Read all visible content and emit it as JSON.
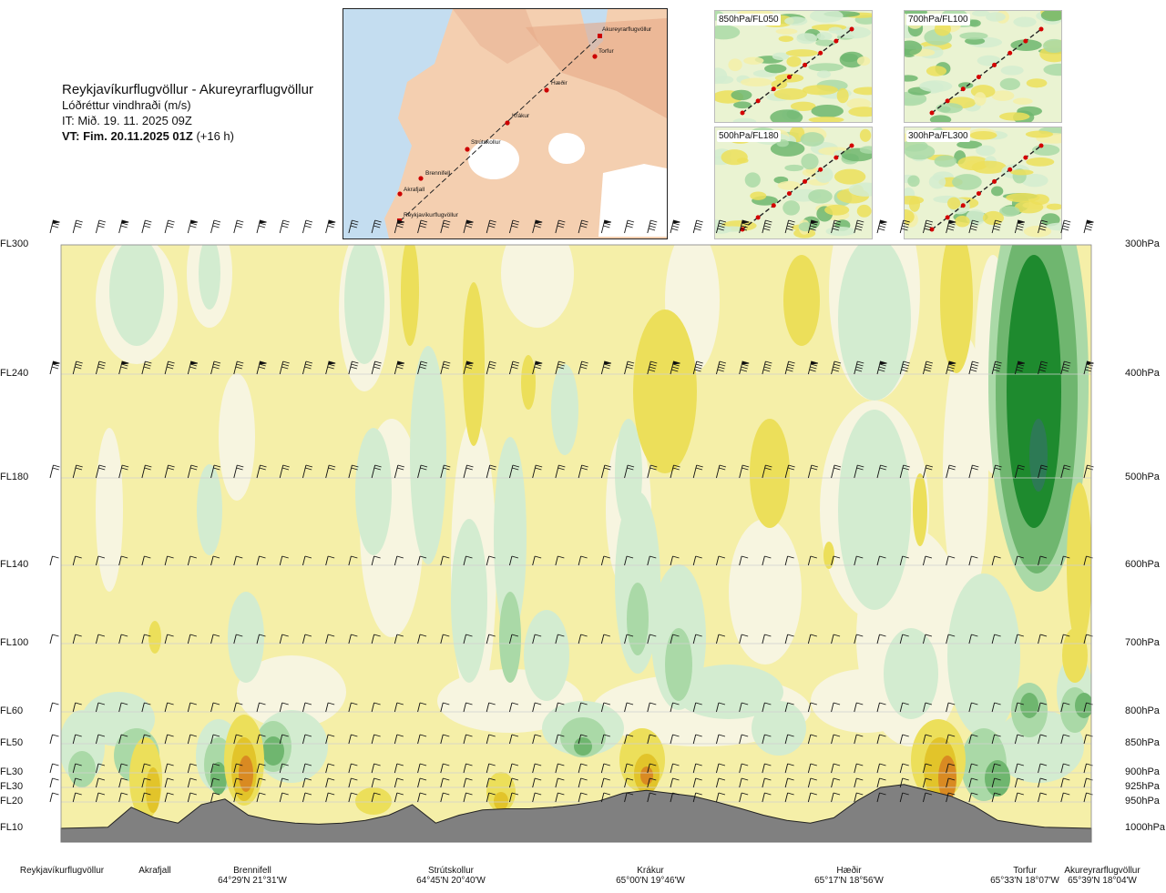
{
  "title": {
    "route": "Reykjavíkurflugvöllur - Akureyrarflugvöllur",
    "variable": "Lóðréttur vindhraði (m/s)",
    "issue_time": "IT: Mið. 19. 11. 2025 09Z",
    "valid_time_bold": "VT: Fim. 20.11.2025 01Z",
    "valid_time_lead": "(+16 h)"
  },
  "route_map": {
    "place_labels": [
      "Akureyrarflugvöllur",
      "Torfur",
      "Hæðir",
      "Krákur",
      "Strútskollur",
      "Brennifell",
      "Akrafjall",
      "Reykjavíkurflugvöllur"
    ]
  },
  "mini_maps": [
    {
      "label": "850hPa/FL050"
    },
    {
      "label": "700hPa/FL100"
    },
    {
      "label": "500hPa/FL180"
    },
    {
      "label": "300hPa/FL300"
    }
  ],
  "chart_data": {
    "type": "heatmap",
    "description_type": "vertical cross-section",
    "quantity": "Lóðréttur vindhraði (m/s)",
    "y_levels": [
      {
        "fl": "FL300",
        "hpa": "300hPa"
      },
      {
        "fl": "FL240",
        "hpa": "400hPa"
      },
      {
        "fl": "FL180",
        "hpa": "500hPa"
      },
      {
        "fl": "FL140",
        "hpa": "600hPa"
      },
      {
        "fl": "FL100",
        "hpa": "700hPa"
      },
      {
        "fl": "FL60",
        "hpa": "800hPa"
      },
      {
        "fl": "FL50",
        "hpa": "850hPa"
      },
      {
        "fl": "FL30",
        "hpa": "900hPa"
      },
      {
        "fl": "FL30",
        "hpa": "925hPa"
      },
      {
        "fl": "FL20",
        "hpa": "950hPa"
      },
      {
        "fl": "FL10",
        "hpa": "1000hPa"
      }
    ],
    "y_pressure_values": [
      300,
      400,
      500,
      600,
      700,
      800,
      850,
      900,
      925,
      950,
      1000
    ],
    "x_stations": [
      {
        "name": "Reykjavíkurflugvöllur",
        "coord": ""
      },
      {
        "name": "Akrafjall",
        "coord": ""
      },
      {
        "name": "Brennifell",
        "coord": "64°29'N 21°31'W"
      },
      {
        "name": "Strútskollur",
        "coord": "64°45'N 20°40'W"
      },
      {
        "name": "Krákur",
        "coord": "65°00'N 19°46'W"
      },
      {
        "name": "Hæðir",
        "coord": "65°17'N 18°56'W"
      },
      {
        "name": "Torfur",
        "coord": "65°33'N 18°07'W"
      },
      {
        "name": "Akureyrarflugvöllur",
        "coord": "65°39'N 18°04'W"
      }
    ],
    "x_station_fraction": [
      0.0,
      0.09,
      0.19,
      0.38,
      0.57,
      0.75,
      0.95,
      1.0
    ],
    "terrain_pressure_hpa": [
      1000,
      999,
      998,
      960,
      980,
      990,
      955,
      945,
      975,
      985,
      990,
      992,
      990,
      985,
      975,
      955,
      990,
      975,
      965,
      963,
      963,
      960,
      955,
      948,
      935,
      930,
      935,
      940,
      950,
      962,
      975,
      985,
      990,
      980,
      948,
      925,
      920,
      930,
      940,
      958,
      985,
      992,
      998,
      999,
      1000
    ],
    "wind_rows_hpa": [
      300,
      400,
      500,
      600,
      700,
      800,
      850,
      900,
      925,
      950
    ],
    "colors": {
      "strong_up": "#1e8a2e",
      "up": "#6fb66f",
      "weak_up": "#aad9a7",
      "faint_up": "#d3ecd0",
      "neutral": "#f7f5e0",
      "faint_down": "#f5efa8",
      "weak_down": "#ecdf5a",
      "down": "#e2c42a",
      "strong_down": "#d98a22",
      "terrain": "#808080"
    }
  }
}
